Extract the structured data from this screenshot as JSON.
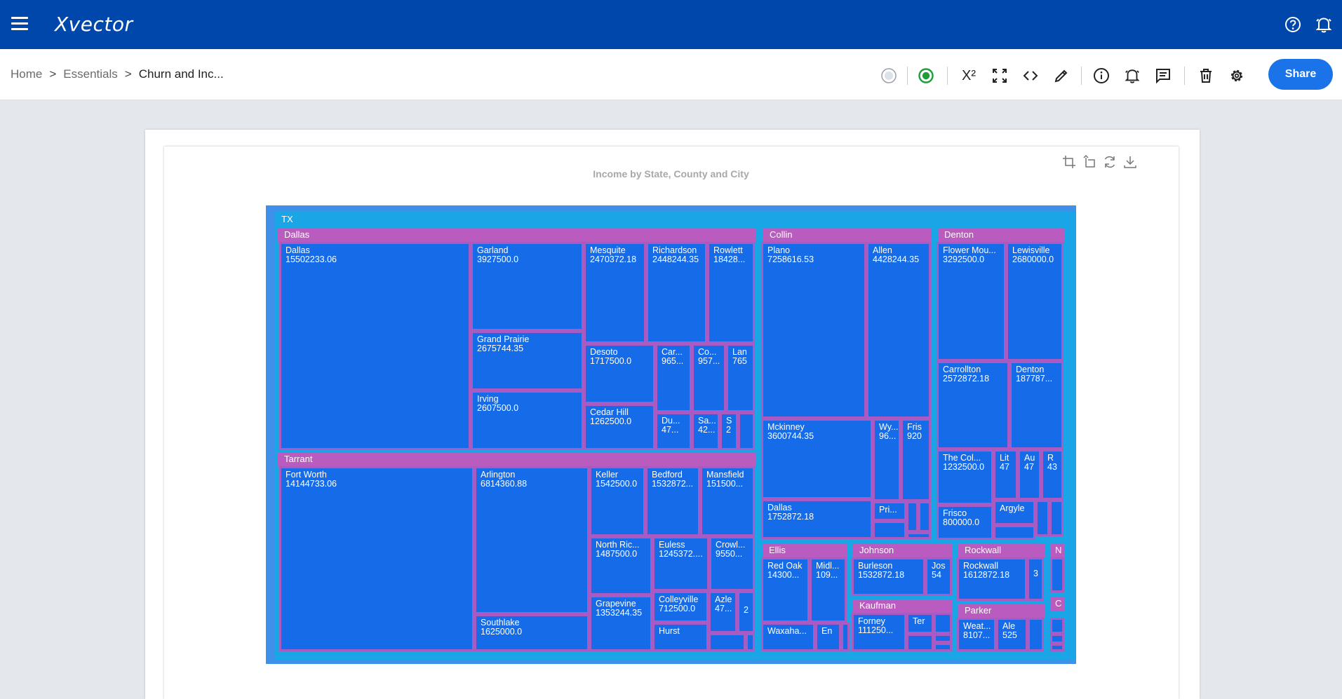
{
  "app": {
    "logo": "Xvector"
  },
  "breadcrumb": {
    "home": "Home",
    "sep": ">",
    "section": "Essentials",
    "current": "Churn and Inc..."
  },
  "toolbar": {
    "superscript": "X²",
    "share": "Share"
  },
  "chart": {
    "title": "Income by State, County and City"
  },
  "colors": {
    "topbar": "#0047ab",
    "accent": "#1a73e8",
    "cell": "#156be8",
    "group": "#b95bbf",
    "border": "#a95bc4",
    "state": "#1aa6e6"
  },
  "chart_data": {
    "type": "treemap",
    "title": "Income by State, County and City",
    "root": "TX",
    "counties": {
      "dallas": {
        "name": "Dallas",
        "cities": [
          {
            "name": "Dallas",
            "value": "15502233.06"
          },
          {
            "name": "Garland",
            "value": "3927500.0"
          },
          {
            "name": "Mesquite",
            "value": "2470372.18"
          },
          {
            "name": "Richardson",
            "value": "2448244.35"
          },
          {
            "name": "Rowlett",
            "value": "18428..."
          },
          {
            "name": "Grand Prairie",
            "value": "2675744.35"
          },
          {
            "name": "Desoto",
            "value": "1717500.0"
          },
          {
            "name": "Car...",
            "value": "965..."
          },
          {
            "name": "Co...",
            "value": "957..."
          },
          {
            "name": "Lan",
            "value": "765"
          },
          {
            "name": "Irving",
            "value": "2607500.0"
          },
          {
            "name": "Cedar Hill",
            "value": "1262500.0"
          },
          {
            "name": "Du...",
            "value": "47..."
          },
          {
            "name": "Sa...",
            "value": "42..."
          },
          {
            "name": "S",
            "value": "2"
          }
        ]
      },
      "tarrant": {
        "name": "Tarrant",
        "cities": [
          {
            "name": "Fort Worth",
            "value": "14144733.06"
          },
          {
            "name": "Arlington",
            "value": "6814360.88"
          },
          {
            "name": "Keller",
            "value": "1542500.0"
          },
          {
            "name": "Bedford",
            "value": "1532872..."
          },
          {
            "name": "Mansfield",
            "value": "151500..."
          },
          {
            "name": "North Ric...",
            "value": "1487500.0"
          },
          {
            "name": "Euless",
            "value": "1245372...."
          },
          {
            "name": "Crowl...",
            "value": "9550..."
          },
          {
            "name": "Grapevine",
            "value": "1353244.35"
          },
          {
            "name": "Colleyville",
            "value": "712500.0"
          },
          {
            "name": "Azle",
            "value": "47..."
          },
          {
            "name": "",
            "value": "2"
          },
          {
            "name": "Southlake",
            "value": "1625000.0"
          },
          {
            "name": "Hurst",
            "value": ""
          }
        ]
      },
      "collin": {
        "name": "Collin",
        "cities": [
          {
            "name": "Plano",
            "value": "7258616.53"
          },
          {
            "name": "Allen",
            "value": "4428244.35"
          },
          {
            "name": "Mckinney",
            "value": "3600744.35"
          },
          {
            "name": "Wy...",
            "value": "96..."
          },
          {
            "name": "Fris",
            "value": "920"
          },
          {
            "name": "Dallas",
            "value": "1752872.18"
          },
          {
            "name": "Pri...",
            "value": ""
          }
        ]
      },
      "denton": {
        "name": "Denton",
        "cities": [
          {
            "name": "Flower Mou...",
            "value": "3292500.0"
          },
          {
            "name": "Lewisville",
            "value": "2680000.0"
          },
          {
            "name": "Carrollton",
            "value": "2572872.18"
          },
          {
            "name": "Denton",
            "value": "187787..."
          },
          {
            "name": "The Col...",
            "value": "1232500.0"
          },
          {
            "name": "Lit",
            "value": "47"
          },
          {
            "name": "Au",
            "value": "47"
          },
          {
            "name": "R",
            "value": "43"
          },
          {
            "name": "Frisco",
            "value": "800000.0"
          },
          {
            "name": "Argyle",
            "value": ""
          }
        ]
      },
      "ellis": {
        "name": "Ellis",
        "cities": [
          {
            "name": "Red Oak",
            "value": "14300..."
          },
          {
            "name": "Midl...",
            "value": "109..."
          },
          {
            "name": "Waxaha...",
            "value": ""
          },
          {
            "name": "En",
            "value": ""
          }
        ]
      },
      "johnson": {
        "name": "Johnson",
        "cities": [
          {
            "name": "Burleson",
            "value": "1532872.18"
          },
          {
            "name": "Jos",
            "value": "54"
          }
        ]
      },
      "kaufman": {
        "name": "Kaufman",
        "cities": [
          {
            "name": "Forney",
            "value": "111250..."
          },
          {
            "name": "Ter",
            "value": ""
          }
        ]
      },
      "rockwall": {
        "name": "Rockwall",
        "cities": [
          {
            "name": "Rockwall",
            "value": "1612872.18"
          },
          {
            "name": "",
            "value": "3"
          }
        ]
      },
      "parker": {
        "name": "Parker",
        "cities": [
          {
            "name": "Weat...",
            "value": "8107..."
          },
          {
            "name": "Ale",
            "value": "525"
          }
        ]
      },
      "n": {
        "name": "N",
        "cities": []
      },
      "c": {
        "name": "C",
        "cities": []
      }
    }
  }
}
